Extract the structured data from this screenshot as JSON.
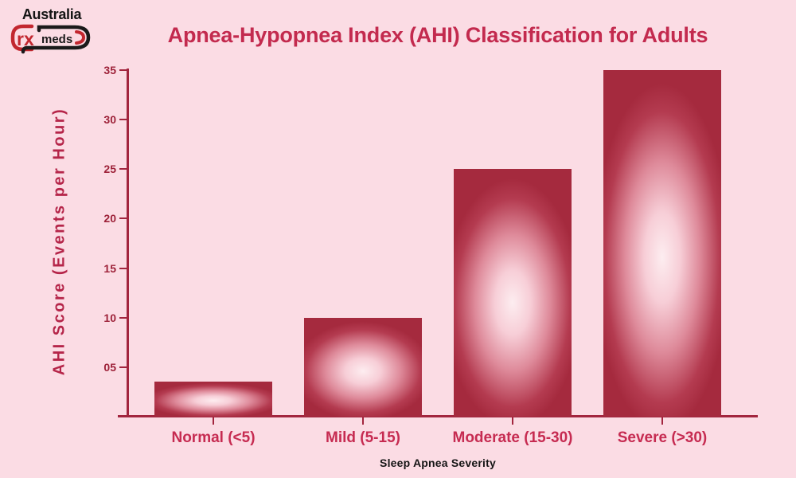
{
  "logo": {
    "country": "Australia",
    "rx": "rx",
    "meds": "meds",
    "red": "#C2272F",
    "black": "#1A1A1A"
  },
  "title": "Apnea-Hypopnea Index (AHI) Classification for Adults",
  "chart_data": {
    "type": "bar",
    "title": "Apnea-Hypopnea Index (AHI) Classification for Adults",
    "categories": [
      "Normal (<5)",
      "Mild (5-15)",
      "Moderate (15-30)",
      "Severe (>30)"
    ],
    "values": [
      3.5,
      10,
      25,
      35
    ],
    "xlabel": "Sleep Apnea Severity",
    "ylabel": "AHI Score (Events per Hour)",
    "ylim": [
      0,
      35
    ],
    "yticks": [
      5,
      10,
      15,
      20,
      25,
      30,
      35
    ],
    "ytick_labels": [
      "05",
      "10",
      "15",
      "20",
      "25",
      "30",
      "35"
    ],
    "grid": false,
    "legend": false,
    "colors": {
      "background": "#FBDCE4",
      "bar_dark": "#A52A3E",
      "bar_light_center": "#FDEDF0",
      "axis": "#A2253E",
      "title_text": "#C32A4E",
      "ytick_text": "#9D2138",
      "category_text": "#C62B51",
      "xlabel_text": "#151515",
      "ylabel_text": "#B52549"
    }
  }
}
